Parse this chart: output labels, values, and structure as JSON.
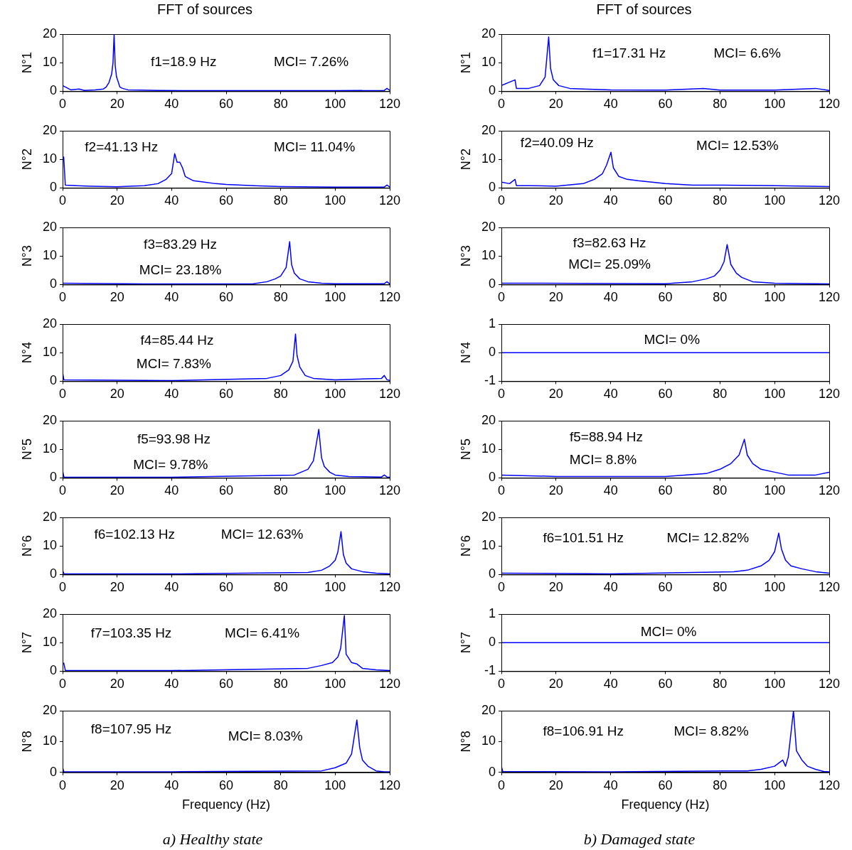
{
  "chart_data": [
    {
      "type": "line",
      "title": "FFT of sources",
      "ylabel": "N°1",
      "color": "#0000ff",
      "marker": "none",
      "xlim": [
        0,
        120
      ],
      "xticks": [
        0,
        20,
        40,
        60,
        80,
        100,
        120
      ],
      "ylim": [
        0,
        20
      ],
      "yticks": [
        0,
        10,
        20
      ],
      "annotations": [
        "f1=18.9 Hz",
        "MCI= 7.26%"
      ],
      "x": [
        0,
        1,
        3,
        6,
        8,
        12,
        15,
        16,
        17,
        18,
        18.5,
        18.9,
        19.3,
        19.8,
        20.5,
        21,
        22,
        24,
        28,
        35,
        45,
        60,
        80,
        100,
        118,
        119,
        120
      ],
      "values": [
        2,
        1.5,
        0.5,
        0.8,
        0.3,
        0.5,
        0.8,
        1.5,
        3,
        6,
        10,
        20,
        9,
        5,
        3,
        1.5,
        1,
        0.5,
        0.4,
        0.3,
        0.2,
        0.2,
        0.2,
        0.2,
        0.3,
        1,
        0.3
      ]
    },
    {
      "type": "line",
      "title": "FFT of sources",
      "ylabel": "N°1",
      "color": "#0000ff",
      "marker": "none",
      "xlim": [
        0,
        120
      ],
      "xticks": [
        0,
        20,
        40,
        60,
        80,
        100,
        120
      ],
      "ylim": [
        0,
        20
      ],
      "yticks": [
        0,
        10,
        20
      ],
      "annotations": [
        "f1=17.31 Hz",
        "MCI= 6.6%"
      ],
      "x": [
        0,
        5,
        5.5,
        10,
        14,
        16,
        17.31,
        18,
        19,
        21,
        25,
        30,
        40,
        60,
        74,
        80,
        100,
        115,
        120
      ],
      "values": [
        2,
        4,
        1,
        1,
        2,
        5,
        19,
        8,
        4,
        2,
        1,
        0.8,
        0.5,
        0.4,
        1,
        0.4,
        0.4,
        1,
        0.3
      ]
    },
    {
      "type": "line",
      "ylabel": "N°2",
      "color": "#0000ff",
      "marker": "none",
      "xlim": [
        0,
        120
      ],
      "xticks": [
        0,
        20,
        40,
        60,
        80,
        100,
        120
      ],
      "ylim": [
        0,
        20
      ],
      "yticks": [
        0,
        10,
        20
      ],
      "annotations": [
        "f2=41.13 Hz",
        "MCI= 11.04%"
      ],
      "x": [
        0.4,
        1,
        5,
        10,
        20,
        30,
        35,
        38,
        40,
        41.13,
        42,
        43,
        44,
        45,
        48,
        52,
        56,
        60,
        70,
        80,
        100,
        118,
        119,
        120
      ],
      "values": [
        11,
        1,
        0.8,
        0.6,
        0.4,
        0.8,
        1.5,
        3,
        5,
        12,
        9,
        9,
        7,
        4,
        2.5,
        2,
        1.5,
        1.2,
        0.8,
        0.5,
        0.3,
        0.3,
        1,
        0.3
      ]
    },
    {
      "type": "line",
      "ylabel": "N°2",
      "color": "#0000ff",
      "marker": "none",
      "xlim": [
        0,
        120
      ],
      "xticks": [
        0,
        20,
        40,
        60,
        80,
        100,
        120
      ],
      "ylim": [
        0,
        20
      ],
      "yticks": [
        0,
        10,
        20
      ],
      "annotations": [
        "f2=40.09 Hz",
        "MCI= 12.53%"
      ],
      "x": [
        0,
        3,
        5,
        5.5,
        10,
        20,
        30,
        34,
        37,
        38.5,
        40.09,
        41,
        43,
        46,
        50,
        55,
        60,
        70,
        80,
        100,
        120
      ],
      "values": [
        2,
        1.5,
        3,
        0.8,
        0.8,
        0.6,
        1.5,
        3,
        5,
        8,
        12.5,
        7,
        4,
        3,
        2.5,
        2,
        1.5,
        1,
        1,
        0.8,
        0.5
      ]
    },
    {
      "type": "line",
      "ylabel": "N°3",
      "color": "#0000ff",
      "marker": "none",
      "xlim": [
        0,
        120
      ],
      "xticks": [
        0,
        20,
        40,
        60,
        80,
        100,
        120
      ],
      "ylim": [
        0,
        20
      ],
      "yticks": [
        0,
        10,
        20
      ],
      "annotations": [
        "f3=83.29 Hz",
        "MCI= 23.18%"
      ],
      "x": [
        0,
        30,
        70,
        75,
        78,
        80,
        82,
        83.29,
        84,
        85,
        87,
        90,
        95,
        100,
        118,
        119,
        120
      ],
      "values": [
        0.5,
        0.2,
        0.3,
        1,
        2,
        3,
        6,
        15,
        7,
        4,
        2,
        1,
        0.5,
        0.3,
        0.3,
        1,
        0.2
      ]
    },
    {
      "type": "line",
      "ylabel": "N°3",
      "color": "#0000ff",
      "marker": "none",
      "xlim": [
        0,
        120
      ],
      "xticks": [
        0,
        20,
        40,
        60,
        80,
        100,
        120
      ],
      "ylim": [
        0,
        20
      ],
      "yticks": [
        0,
        10,
        20
      ],
      "annotations": [
        "f3=82.63 Hz",
        "MCI= 25.09%"
      ],
      "x": [
        0,
        60,
        70,
        75,
        78,
        80,
        81.5,
        82.63,
        84,
        86,
        88,
        92,
        100,
        120
      ],
      "values": [
        0.5,
        0.3,
        1,
        2,
        3,
        5,
        8,
        14,
        7,
        4,
        2.5,
        1,
        0.5,
        0.2
      ]
    },
    {
      "type": "line",
      "ylabel": "N°4",
      "color": "#0000ff",
      "marker": "none",
      "xlim": [
        0,
        120
      ],
      "xticks": [
        0,
        20,
        40,
        60,
        80,
        100,
        120
      ],
      "ylim": [
        0,
        20
      ],
      "yticks": [
        0,
        10,
        20
      ],
      "annotations": [
        "f4=85.44 Hz",
        "MCI= 7.83%"
      ],
      "x": [
        0,
        0.5,
        40,
        75,
        80,
        83,
        84.5,
        85.44,
        86,
        87,
        89,
        92,
        100,
        117,
        118,
        119,
        120
      ],
      "values": [
        3,
        0.5,
        0.2,
        1,
        2,
        4,
        7,
        16.5,
        9,
        5,
        2,
        1,
        0.5,
        1,
        2,
        0.5,
        0.3
      ]
    },
    {
      "type": "line",
      "ylabel": "N°4",
      "color": "#0000ff",
      "marker": "none",
      "xlim": [
        0,
        120
      ],
      "xticks": [
        0,
        20,
        40,
        60,
        80,
        100,
        120
      ],
      "ylim": [
        -1,
        1
      ],
      "yticks": [
        -1,
        0,
        1
      ],
      "annotations": [
        "MCI= 0%"
      ],
      "x": [
        0,
        120
      ],
      "values": [
        0,
        0
      ]
    },
    {
      "type": "line",
      "ylabel": "N°5",
      "color": "#0000ff",
      "marker": "none",
      "xlim": [
        0,
        120
      ],
      "xticks": [
        0,
        20,
        40,
        60,
        80,
        100,
        120
      ],
      "ylim": [
        0,
        20
      ],
      "yticks": [
        0,
        10,
        20
      ],
      "annotations": [
        "f5=93.98 Hz",
        "MCI= 9.78%"
      ],
      "x": [
        0,
        0.5,
        40,
        85,
        90,
        92,
        93.98,
        95,
        96,
        98,
        100,
        105,
        117,
        118,
        119,
        120
      ],
      "values": [
        2.5,
        0.3,
        0.2,
        1,
        3,
        6,
        17,
        7,
        4,
        2,
        1,
        0.5,
        0.3,
        1,
        0.3,
        0.2
      ]
    },
    {
      "type": "line",
      "ylabel": "N°5",
      "color": "#0000ff",
      "marker": "none",
      "xlim": [
        0,
        120
      ],
      "xticks": [
        0,
        20,
        40,
        60,
        80,
        100,
        120
      ],
      "ylim": [
        0,
        20
      ],
      "yticks": [
        0,
        10,
        20
      ],
      "annotations": [
        "f5=88.94 Hz",
        "MCI= 8.8%"
      ],
      "x": [
        0,
        20,
        60,
        75,
        80,
        84,
        87,
        88.94,
        90,
        92,
        95,
        100,
        105,
        115,
        120
      ],
      "values": [
        1,
        0.5,
        0.5,
        1.5,
        3,
        5,
        8,
        13.5,
        8,
        5,
        3,
        2,
        1,
        1,
        2
      ]
    },
    {
      "type": "line",
      "ylabel": "N°6",
      "color": "#0000ff",
      "marker": "none",
      "xlim": [
        0,
        120
      ],
      "xticks": [
        0,
        20,
        40,
        60,
        80,
        100,
        120
      ],
      "ylim": [
        0,
        20
      ],
      "yticks": [
        0,
        10,
        20
      ],
      "annotations": [
        "f6=102.13 Hz",
        "MCI= 12.63%"
      ],
      "x": [
        0,
        0.5,
        40,
        90,
        95,
        98,
        100,
        101,
        102.13,
        103,
        104,
        106,
        110,
        115,
        120
      ],
      "values": [
        1.5,
        0.3,
        0.2,
        0.7,
        1.5,
        3,
        5,
        8,
        15,
        7,
        4,
        2,
        1,
        0.5,
        0.2
      ]
    },
    {
      "type": "line",
      "ylabel": "N°6",
      "color": "#0000ff",
      "marker": "none",
      "xlim": [
        0,
        120
      ],
      "xticks": [
        0,
        20,
        40,
        60,
        80,
        100,
        120
      ],
      "ylim": [
        0,
        20
      ],
      "yticks": [
        0,
        10,
        20
      ],
      "annotations": [
        "f6=101.51 Hz",
        "MCI= 12.82%"
      ],
      "x": [
        0,
        40,
        85,
        90,
        95,
        98,
        100,
        101.51,
        102.5,
        104,
        106,
        110,
        115,
        120
      ],
      "values": [
        0.5,
        0.2,
        1,
        1.5,
        3,
        5,
        8,
        14.5,
        9,
        5,
        3,
        2,
        1,
        0.5
      ]
    },
    {
      "type": "line",
      "ylabel": "N°7",
      "color": "#0000ff",
      "marker": "none",
      "xlim": [
        0,
        120
      ],
      "xticks": [
        0,
        20,
        40,
        60,
        80,
        100,
        120
      ],
      "ylim": [
        0,
        20
      ],
      "yticks": [
        0,
        10,
        20
      ],
      "annotations": [
        "f7=103.35 Hz",
        "MCI= 6.41%"
      ],
      "x": [
        0.4,
        1,
        40,
        90,
        95,
        99,
        101,
        102,
        103.35,
        104,
        106,
        108,
        110,
        115,
        120
      ],
      "values": [
        3,
        0.3,
        0.2,
        1,
        2,
        3,
        5,
        8,
        19.5,
        6,
        3,
        2.5,
        1,
        0.5,
        0.2
      ]
    },
    {
      "type": "line",
      "ylabel": "N°7",
      "color": "#0000ff",
      "marker": "none",
      "xlim": [
        0,
        120
      ],
      "xticks": [
        0,
        20,
        40,
        60,
        80,
        100,
        120
      ],
      "ylim": [
        -1,
        1
      ],
      "yticks": [
        -1,
        0,
        1
      ],
      "annotations": [
        "MCI= 0%"
      ],
      "x": [
        0,
        120
      ],
      "values": [
        0,
        0
      ]
    },
    {
      "type": "line",
      "ylabel": "N°8",
      "xlabel": "Frequency (Hz)",
      "color": "#0000ff",
      "marker": "none",
      "xlim": [
        0,
        120
      ],
      "xticks": [
        0,
        20,
        40,
        60,
        80,
        100,
        120
      ],
      "ylim": [
        0,
        20
      ],
      "yticks": [
        0,
        10,
        20
      ],
      "annotations": [
        "f8=107.95 Hz",
        "MCI= 8.03%",
        "a) Healthy state"
      ],
      "x": [
        0,
        0.5,
        40,
        95,
        100,
        104,
        106,
        107.95,
        109,
        110,
        112,
        115,
        118,
        120
      ],
      "values": [
        1.5,
        0.2,
        0.2,
        0.5,
        1.5,
        3,
        6,
        17,
        8,
        4,
        2,
        0.5,
        0.2,
        0.2
      ]
    },
    {
      "type": "line",
      "ylabel": "N°8",
      "xlabel": "Frequency (Hz)",
      "color": "#0000ff",
      "marker": "none",
      "xlim": [
        0,
        120
      ],
      "xticks": [
        0,
        20,
        40,
        60,
        80,
        100,
        120
      ],
      "ylim": [
        0,
        20
      ],
      "yticks": [
        0,
        10,
        20
      ],
      "annotations": [
        "f8=106.91 Hz",
        "MCI= 8.82%",
        "b) Damaged state"
      ],
      "x": [
        0,
        0.5,
        40,
        90,
        95,
        100,
        103,
        104,
        105,
        106.91,
        108,
        110,
        112,
        115,
        118,
        120
      ],
      "values": [
        2,
        0.3,
        0.2,
        0.5,
        1,
        2,
        4,
        2,
        5,
        20,
        7,
        4,
        2,
        1,
        0.3,
        0.2
      ]
    }
  ]
}
